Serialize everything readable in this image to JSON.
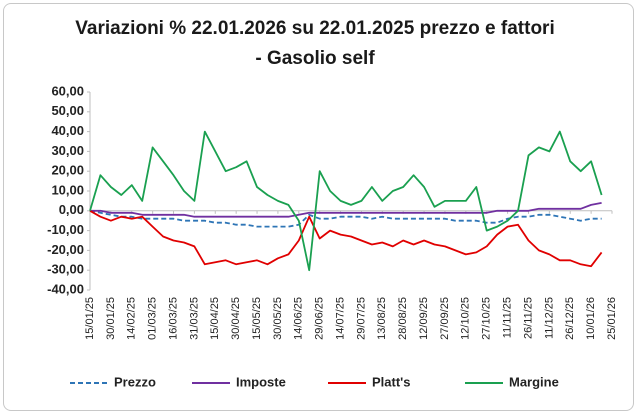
{
  "chart_data": {
    "type": "line",
    "title": "Variazioni % 22.01.2026 su 22.01.2025 prezzo e fattori - Gasolio self",
    "categories": [
      "15/01/25",
      null,
      "30/01/25",
      null,
      "14/02/25",
      null,
      "01/03/25",
      null,
      "16/03/25",
      null,
      "31/03/25",
      null,
      "15/04/25",
      null,
      "30/04/25",
      null,
      "15/05/25",
      null,
      "30/05/25",
      null,
      "14/06/25",
      null,
      "29/06/25",
      null,
      "14/07/25",
      null,
      "29/07/25",
      null,
      "13/08/25",
      null,
      "28/08/25",
      null,
      "12/09/25",
      null,
      "27/09/25",
      null,
      "12/10/25",
      null,
      "27/10/25",
      null,
      "11/11/25",
      null,
      "26/11/25",
      null,
      "11/12/25",
      null,
      "26/12/25",
      null,
      "10/01/26",
      null,
      "25/01/26"
    ],
    "series": [
      {
        "name": "Prezzo",
        "color": "#2e75b6",
        "dash": true,
        "values": [
          0,
          -1,
          -2,
          -3,
          -3,
          -4,
          -4,
          -4,
          -4,
          -5,
          -5,
          -5,
          -6,
          -6,
          -7,
          -7,
          -8,
          -8,
          -8,
          -8,
          -7,
          -2,
          -4,
          -4,
          -3,
          -3,
          -3,
          -4,
          -3,
          -4,
          -4,
          -4,
          -4,
          -4,
          -4,
          -5,
          -5,
          -5,
          -6,
          -6,
          -4,
          -3,
          -3,
          -2,
          -2,
          -3,
          -4,
          -5,
          -4,
          -4,
          null
        ]
      },
      {
        "name": "Imposte",
        "color": "#7030a0",
        "dash": false,
        "values": [
          0,
          0,
          -1,
          -1,
          -1,
          -2,
          -2,
          -2,
          -2,
          -2,
          -3,
          -3,
          -3,
          -3,
          -3,
          -3,
          -3,
          -3,
          -3,
          -3,
          -2,
          -1,
          -1,
          -1,
          -1,
          -1,
          -1,
          -1,
          -1,
          -1,
          -1,
          -1,
          -1,
          -1,
          -1,
          -1,
          -1,
          -1,
          -1,
          0,
          0,
          0,
          0,
          1,
          1,
          1,
          1,
          1,
          3,
          4,
          null
        ]
      },
      {
        "name": "Platt's",
        "color": "#e00000",
        "dash": false,
        "values": [
          0,
          -3,
          -5,
          -3,
          -4,
          -3,
          -8,
          -13,
          -15,
          -16,
          -18,
          -27,
          -26,
          -25,
          -27,
          -26,
          -25,
          -27,
          -24,
          -22,
          -15,
          -3,
          -14,
          -10,
          -12,
          -13,
          -15,
          -17,
          -16,
          -18,
          -15,
          -17,
          -15,
          -17,
          -18,
          -20,
          -22,
          -21,
          -18,
          -12,
          -8,
          -7,
          -15,
          -20,
          -22,
          -25,
          -25,
          -27,
          -28,
          -21,
          null
        ]
      },
      {
        "name": "Margine",
        "color": "#1aa050",
        "dash": false,
        "values": [
          0,
          18,
          12,
          8,
          13,
          5,
          32,
          25,
          18,
          10,
          5,
          40,
          30,
          20,
          22,
          25,
          12,
          8,
          5,
          3,
          -5,
          -30,
          20,
          10,
          5,
          3,
          5,
          12,
          5,
          10,
          12,
          18,
          12,
          2,
          5,
          5,
          5,
          12,
          -10,
          -8,
          -5,
          0,
          28,
          32,
          30,
          40,
          25,
          20,
          25,
          8,
          null
        ]
      }
    ],
    "ylim": [
      -40,
      60
    ],
    "yticks": [
      {
        "value": 60,
        "label": "60,00"
      },
      {
        "value": 50,
        "label": "50,00"
      },
      {
        "value": 40,
        "label": "40,00"
      },
      {
        "value": 30,
        "label": "30,00"
      },
      {
        "value": 20,
        "label": "20,00"
      },
      {
        "value": 10,
        "label": "10,00"
      },
      {
        "value": 0,
        "label": "0,00"
      },
      {
        "value": -10,
        "label": "-10,00"
      },
      {
        "value": -20,
        "label": "-20,00"
      },
      {
        "value": -30,
        "label": "-30,00"
      },
      {
        "value": -40,
        "label": "-40,00"
      }
    ],
    "negative_tick_color": "#e00000",
    "grid": false,
    "legend": "bottom"
  }
}
